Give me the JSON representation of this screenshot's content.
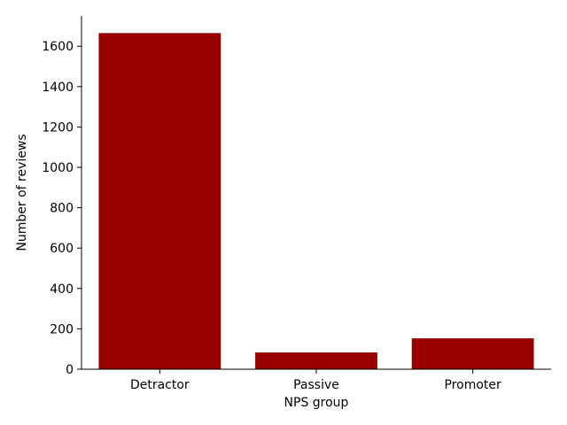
{
  "chart_data": {
    "type": "bar",
    "title": "",
    "xlabel": "NPS group",
    "ylabel": "Number of reviews",
    "categories": [
      "Detractor",
      "Passive",
      "Promoter"
    ],
    "values": [
      1665,
      83,
      153
    ],
    "ylim": [
      0,
      1750
    ],
    "yticks": [
      0,
      200,
      400,
      600,
      800,
      1000,
      1200,
      1400,
      1600
    ],
    "bar_color": "#990000",
    "grid": false,
    "legend": "none",
    "spines": "left-bottom"
  }
}
